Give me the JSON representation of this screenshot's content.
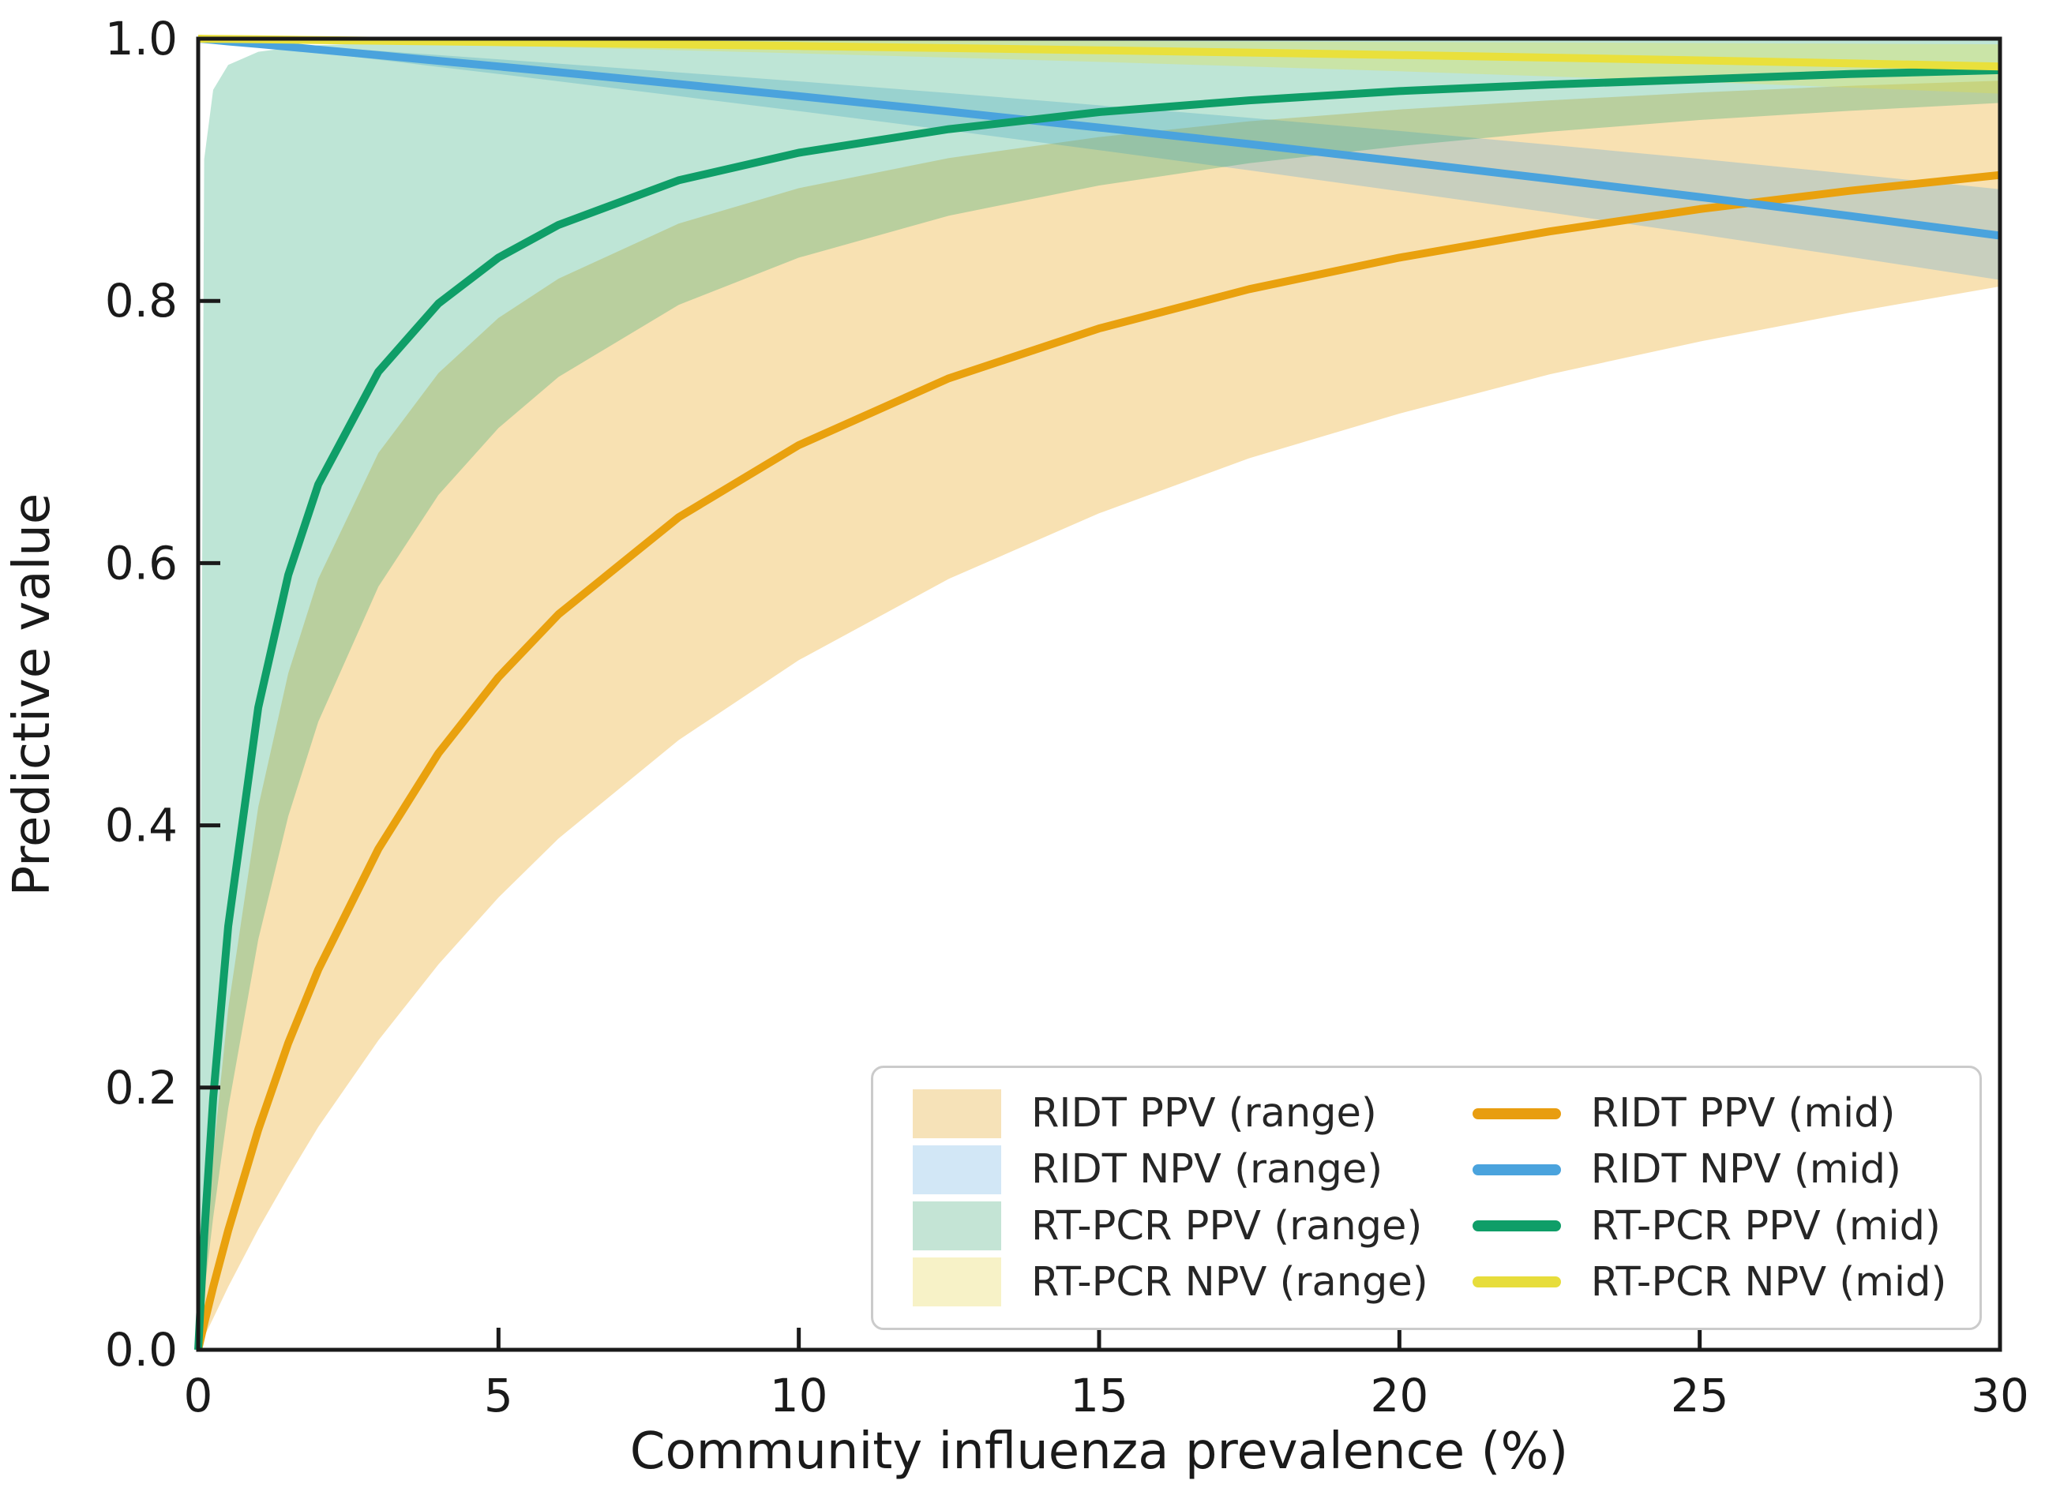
{
  "accent_colors": {
    "ridt_ppv_line": "#e9a10e",
    "ridt_npv_line": "#4aa3dd",
    "rtpcr_ppv_line": "#0f9e68",
    "rtpcr_npv_line": "#e9e03c",
    "axis_color": "#1a1a1a",
    "legend_border": "#cbcbcb"
  },
  "legend": {
    "position": "lower right",
    "range_items": [
      {
        "label": "RIDT PPV (range)",
        "swatch": "#f6e2b8"
      },
      {
        "label": "RIDT NPV (range)",
        "swatch": "#d2e7f6"
      },
      {
        "label": "RT-PCR PPV (range)",
        "swatch": "#c4e4d5"
      },
      {
        "label": "RT-PCR NPV (range)",
        "swatch": "#f7f2c7"
      }
    ],
    "mid_items": [
      {
        "label": "RIDT PPV (mid)",
        "swatch": "#e89d10"
      },
      {
        "label": "RIDT NPV (mid)",
        "swatch": "#4aa3dd"
      },
      {
        "label": "RT-PCR PPV (mid)",
        "swatch": "#0f9e68"
      },
      {
        "label": "RT-PCR NPV (mid)",
        "swatch": "#e7dd3b"
      }
    ]
  },
  "chart_data": {
    "type": "line",
    "title": "",
    "xlabel": "Community influenza prevalence (%)",
    "ylabel": "Predictive value",
    "xlim": [
      0,
      30
    ],
    "ylim": [
      0.0,
      1.0
    ],
    "grid": false,
    "legend_position": "lower right",
    "xticks": {
      "values": [
        0,
        5,
        10,
        15,
        20,
        25,
        30
      ],
      "labels": [
        "0",
        "5",
        "10",
        "15",
        "20",
        "25",
        "30"
      ]
    },
    "yticks": {
      "values": [
        0.0,
        0.2,
        0.4,
        0.6,
        0.8,
        1.0
      ],
      "labels": [
        "0.0",
        "0.2",
        "0.4",
        "0.6",
        "0.8",
        "1.0"
      ]
    },
    "x": [
      0,
      0.1,
      0.25,
      0.5,
      1,
      1.5,
      2,
      3,
      4,
      5,
      6,
      8,
      10,
      12.5,
      15,
      17.5,
      20,
      22.5,
      25,
      27.5,
      30
    ],
    "bands": [
      {
        "name": "RIDT PPV (range)",
        "color": "#e9a10e",
        "opacity": 0.32,
        "lower": [
          0,
          0.01,
          0.024,
          0.048,
          0.092,
          0.132,
          0.17,
          0.236,
          0.294,
          0.345,
          0.39,
          0.465,
          0.526,
          0.588,
          0.638,
          0.68,
          0.714,
          0.744,
          0.769,
          0.791,
          0.811
        ],
        "upper": [
          0,
          0.066,
          0.149,
          0.26,
          0.414,
          0.516,
          0.588,
          0.684,
          0.745,
          0.787,
          0.817,
          0.859,
          0.886,
          0.909,
          0.925,
          0.937,
          0.946,
          0.953,
          0.959,
          0.964,
          0.968
        ]
      },
      {
        "name": "RIDT NPV (range)",
        "color": "#4aa3dd",
        "opacity": 0.28,
        "lower": [
          1,
          0.9995,
          0.9987,
          0.9974,
          0.9947,
          0.9921,
          0.9894,
          0.984,
          0.9785,
          0.9731,
          0.9675,
          0.9562,
          0.9448,
          0.9301,
          0.915,
          0.8996,
          0.8837,
          0.8675,
          0.8508,
          0.8336,
          0.816
        ],
        "upper": [
          1,
          0.9997,
          0.9992,
          0.9985,
          0.997,
          0.9954,
          0.9939,
          0.9907,
          0.9875,
          0.9843,
          0.981,
          0.9743,
          0.9674,
          0.9585,
          0.9492,
          0.9396,
          0.9296,
          0.9191,
          0.9083,
          0.8969,
          0.8851
        ]
      },
      {
        "name": "RT-PCR PPV (range)",
        "color": "#0f9e68",
        "opacity": 0.27,
        "lower": [
          0,
          0.043,
          0.101,
          0.184,
          0.313,
          0.407,
          0.479,
          0.582,
          0.652,
          0.703,
          0.742,
          0.797,
          0.833,
          0.865,
          0.888,
          0.905,
          0.918,
          0.929,
          0.938,
          0.945,
          0.951
        ],
        "upper": [
          0,
          0.908,
          0.961,
          0.98,
          0.99,
          0.993,
          0.995,
          0.9966,
          0.9975,
          0.998,
          0.9983,
          0.9987,
          0.999,
          0.9992,
          0.9993,
          0.9994,
          0.9995,
          0.9996,
          0.9996,
          0.9997,
          0.9997
        ]
      },
      {
        "name": "RT-PCR NPV (range)",
        "color": "#e9e03c",
        "opacity": 0.3,
        "lower": [
          1,
          0.9999,
          0.99974,
          0.99949,
          0.99897,
          0.99845,
          0.99792,
          0.99685,
          0.99577,
          0.99466,
          0.99353,
          0.99121,
          0.98879,
          0.98563,
          0.98231,
          0.97881,
          0.97512,
          0.97123,
          0.96711,
          0.96275,
          0.9581
        ],
        "upper": [
          1,
          0.99999,
          0.99998,
          0.99995,
          0.9999,
          0.99985,
          0.9998,
          0.99969,
          0.99958,
          0.99947,
          0.99936,
          0.99913,
          0.99889,
          0.99857,
          0.99824,
          0.99788,
          0.9975,
          0.9971,
          0.99667,
          0.99622,
          0.99573
        ]
      }
    ],
    "series": [
      {
        "name": "RIDT PPV (mid)",
        "color": "#e9a10e",
        "values": [
          0,
          0.02,
          0.048,
          0.091,
          0.168,
          0.234,
          0.29,
          0.382,
          0.455,
          0.513,
          0.561,
          0.635,
          0.69,
          0.741,
          0.779,
          0.809,
          0.833,
          0.853,
          0.87,
          0.884,
          0.896
        ]
      },
      {
        "name": "RIDT NPV (mid)",
        "color": "#4aa3dd",
        "values": [
          1,
          0.9996,
          0.999,
          0.9979,
          0.9959,
          0.9938,
          0.9917,
          0.9874,
          0.9831,
          0.9788,
          0.9744,
          0.9654,
          0.9562,
          0.9444,
          0.9322,
          0.9196,
          0.9065,
          0.8931,
          0.8792,
          0.8648,
          0.8498
        ]
      },
      {
        "name": "RT-PCR PPV (mid)",
        "color": "#0f9e68",
        "values": [
          0,
          0.087,
          0.192,
          0.323,
          0.49,
          0.591,
          0.66,
          0.746,
          0.798,
          0.833,
          0.858,
          0.892,
          0.913,
          0.931,
          0.944,
          0.953,
          0.96,
          0.965,
          0.969,
          0.973,
          0.976
        ]
      },
      {
        "name": "RT-PCR NPV (mid)",
        "color": "#e9e03c",
        "values": [
          1,
          0.99995,
          0.99987,
          0.99975,
          0.99949,
          0.99923,
          0.99897,
          0.99844,
          0.9979,
          0.99735,
          0.99679,
          0.99563,
          0.99442,
          0.99284,
          0.99117,
          0.9894,
          0.98753,
          0.98555,
          0.98344,
          0.9812,
          0.97881
        ]
      }
    ]
  }
}
